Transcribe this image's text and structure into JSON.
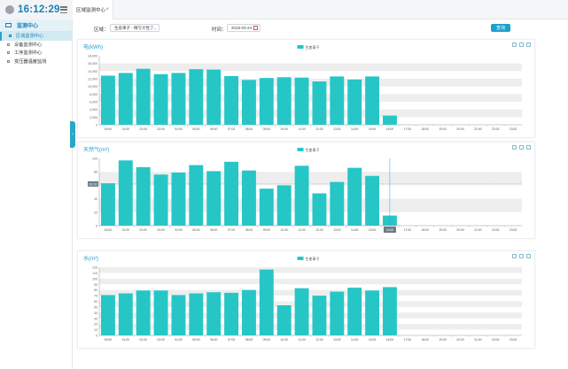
{
  "header": {
    "clock": "16:12:29",
    "tab_label": "区域监测中心",
    "tab_close": "×"
  },
  "sidebar": {
    "title": "监测中心",
    "items": [
      {
        "label": "区域监测中心",
        "active": true
      },
      {
        "label": "设备监测中心",
        "active": false
      },
      {
        "label": "工序监测中心",
        "active": false
      },
      {
        "label": "变压器温度监测",
        "active": false
      }
    ]
  },
  "filters": {
    "region_label": "区域：",
    "region_value": "生産車子 - 精写大性了",
    "time_label": "时间：",
    "date_value": "2018-03-24",
    "query_button": "查询"
  },
  "colors": {
    "bar": "#26c6c6",
    "accent": "#1ea0cf",
    "grid_band": "#eeeeee",
    "highlight": "#3a9fd8"
  },
  "chart_data": [
    {
      "type": "bar",
      "title": "电(kWh)",
      "legend": "生産車子",
      "categories": [
        "00:00",
        "01:00",
        "02:00",
        "03:00",
        "04:00",
        "05:00",
        "06:00",
        "07:00",
        "08:00",
        "09:00",
        "10:00",
        "11:00",
        "12:00",
        "13:00",
        "14:00",
        "15:00",
        "16:00",
        "17:00",
        "18:00",
        "19:00",
        "20:00",
        "21:00",
        "22:00",
        "23:00"
      ],
      "values": [
        12800,
        13500,
        14600,
        13200,
        13500,
        14500,
        14400,
        12700,
        11700,
        12200,
        12400,
        12300,
        11300,
        12600,
        11800,
        12600,
        2400,
        null,
        null,
        null,
        null,
        null,
        null,
        null
      ],
      "ylim": [
        0,
        18000
      ],
      "yticks": [
        0,
        2000,
        4000,
        6000,
        8000,
        10000,
        12000,
        14000,
        16000,
        18000
      ],
      "ytick_labels": [
        "0",
        "2,000",
        "4,000",
        "6,000",
        "8,000",
        "10,000",
        "12,000",
        "14,000",
        "16,000",
        "18,000"
      ]
    },
    {
      "type": "bar",
      "title": "天然气(m³)",
      "legend": "生産車子",
      "categories": [
        "00:00",
        "01:00",
        "02:00",
        "03:00",
        "04:00",
        "05:00",
        "06:00",
        "07:00",
        "08:00",
        "09:00",
        "10:00",
        "11:00",
        "12:00",
        "13:00",
        "14:00",
        "15:00",
        "16:00",
        "17:00",
        "18:00",
        "19:00",
        "20:00",
        "21:00",
        "22:00",
        "23:00"
      ],
      "values": [
        63,
        97,
        87,
        76,
        79,
        90,
        81,
        95,
        82,
        55,
        60,
        89,
        48,
        65,
        86,
        74,
        15,
        null,
        null,
        null,
        null,
        null,
        null,
        null
      ],
      "ylim": [
        0,
        100
      ],
      "yticks": [
        0,
        20,
        40,
        60,
        80,
        100
      ],
      "ytick_labels": [
        "0",
        "20",
        "40",
        "60",
        "80",
        "100"
      ],
      "crosshair_y_label": "62.00",
      "crosshair_x_index": 16
    },
    {
      "type": "bar",
      "title": "水(m³)",
      "legend": "生産車子",
      "categories": [
        "00:00",
        "01:00",
        "02:00",
        "03:00",
        "04:00",
        "05:00",
        "06:00",
        "07:00",
        "08:00",
        "09:00",
        "10:00",
        "11:00",
        "12:00",
        "13:00",
        "14:00",
        "15:00",
        "16:00",
        "17:00",
        "18:00",
        "19:00",
        "20:00",
        "21:00",
        "22:00",
        "23:00"
      ],
      "values": [
        71,
        74,
        79,
        79,
        71,
        74,
        76,
        75,
        80,
        116,
        53,
        83,
        70,
        77,
        84,
        79,
        85,
        null,
        null,
        null,
        null,
        null,
        null,
        null
      ],
      "ylim": [
        0,
        120
      ],
      "yticks": [
        0,
        10,
        20,
        30,
        40,
        50,
        60,
        70,
        80,
        90,
        100,
        110,
        120
      ],
      "ytick_labels": [
        "0",
        "10",
        "20",
        "30",
        "40",
        "50",
        "60",
        "70",
        "80",
        "90",
        "100",
        "110",
        "120"
      ]
    }
  ]
}
